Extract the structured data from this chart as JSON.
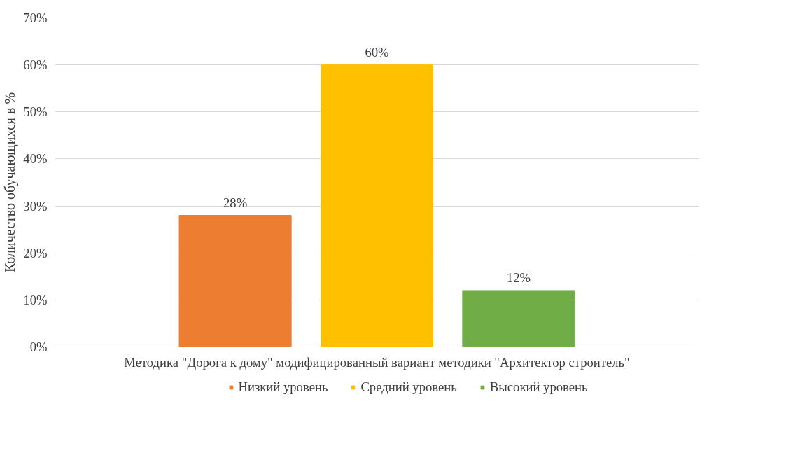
{
  "chart_data": {
    "type": "bar",
    "ylabel": "Количество обучающихся в %",
    "categories": [
      "Методика \"Дорога к дому\" модифицированный вариант методики \"Архитектор строитель\""
    ],
    "series": [
      {
        "name": "Низкий уровень",
        "color": "#ed7d31",
        "values": [
          28
        ],
        "value_labels": [
          "28%"
        ]
      },
      {
        "name": "Средний уровень",
        "color": "#ffc000",
        "values": [
          60
        ],
        "value_labels": [
          "60%"
        ]
      },
      {
        "name": "Высокий уровень",
        "color": "#70ad47",
        "values": [
          12
        ],
        "value_labels": [
          "12%"
        ]
      }
    ],
    "ylim": [
      0,
      70
    ],
    "yticks": [
      {
        "value": 0,
        "label": "0%"
      },
      {
        "value": 10,
        "label": "10%"
      },
      {
        "value": 20,
        "label": "20%"
      },
      {
        "value": 30,
        "label": "30%"
      },
      {
        "value": 40,
        "label": "40%"
      },
      {
        "value": 50,
        "label": "50%"
      },
      {
        "value": 60,
        "label": "60%"
      },
      {
        "value": 70,
        "label": "70%"
      }
    ],
    "grid": "y",
    "legend": "bottom"
  }
}
